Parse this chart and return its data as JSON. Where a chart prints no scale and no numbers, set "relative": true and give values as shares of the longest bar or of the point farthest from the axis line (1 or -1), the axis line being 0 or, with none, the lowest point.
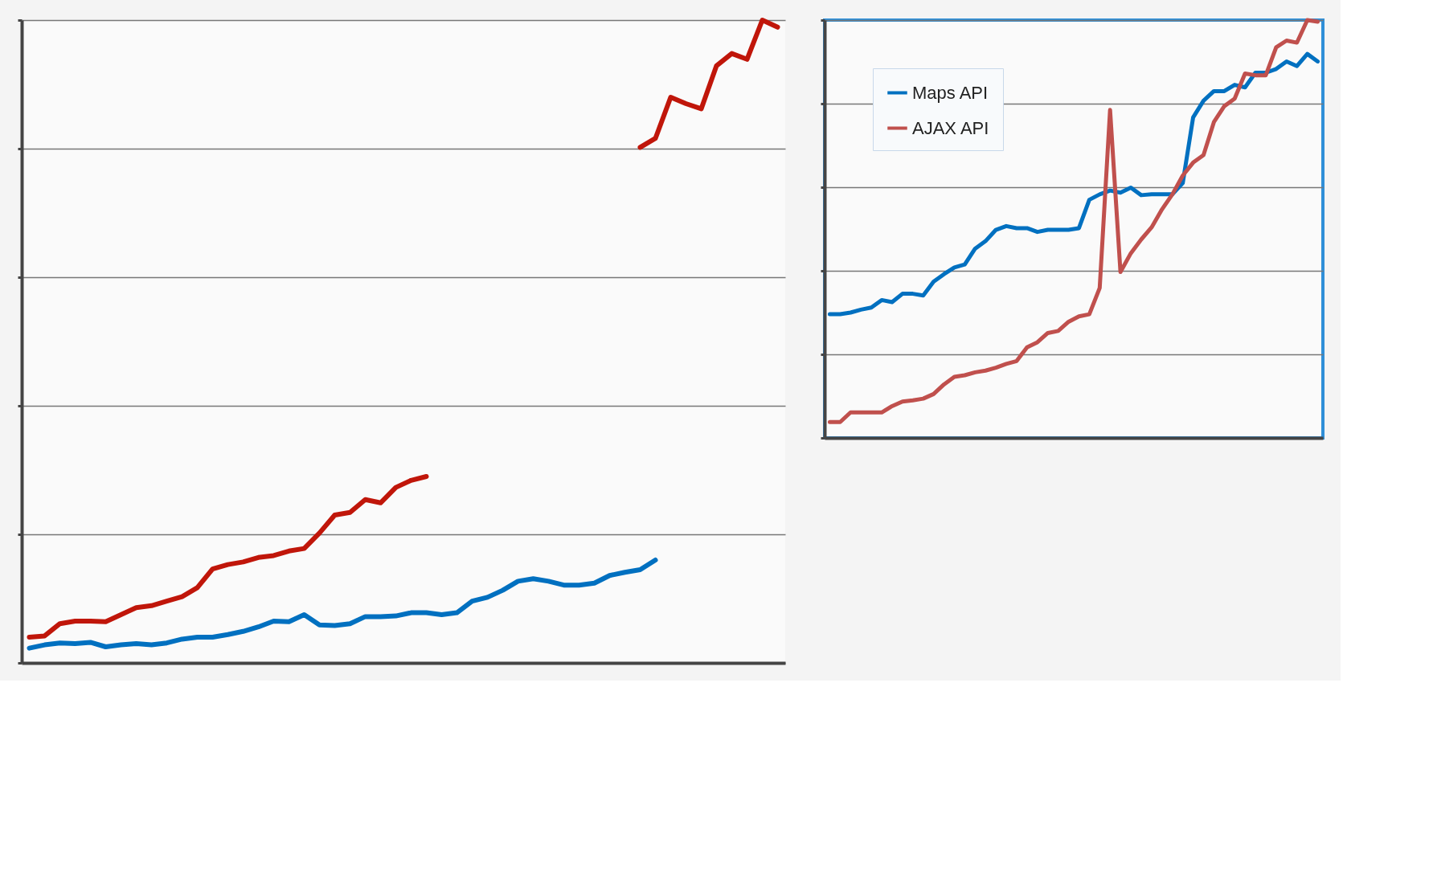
{
  "chart_data": [
    {
      "type": "line",
      "relative": true,
      "grid": "y",
      "legend": false,
      "categories": [
        null,
        null,
        null,
        null,
        null,
        null,
        null,
        null,
        null,
        null,
        null,
        null,
        null,
        null,
        null,
        null,
        null,
        null,
        null,
        null,
        null,
        null,
        null,
        null,
        null,
        null,
        null,
        null,
        null,
        null,
        null,
        null,
        null,
        null,
        null,
        null,
        null,
        null,
        null,
        null,
        null,
        null,
        null,
        null,
        null,
        null,
        null,
        null,
        null,
        null
      ],
      "series": [
        {
          "color": "#c0160a",
          "values": [
            0.04,
            0.042,
            0.061,
            0.065,
            0.065,
            0.064,
            0.075,
            0.086,
            0.089,
            0.096,
            0.103,
            0.117,
            0.146,
            0.153,
            0.157,
            0.164,
            0.167,
            0.174,
            0.178,
            0.202,
            0.23,
            0.234,
            0.254,
            0.249,
            0.273,
            0.284,
            0.29,
            null,
            null,
            null,
            null,
            null,
            null,
            null,
            null,
            null,
            null,
            null,
            null,
            null,
            0.802,
            0.816,
            0.88,
            0.87,
            0.862,
            0.929,
            0.948,
            0.939,
            1.0,
            0.989
          ]
        },
        {
          "color": "#0070c0",
          "values": [
            0.023,
            0.028,
            0.031,
            0.03,
            0.032,
            0.025,
            0.028,
            0.03,
            0.028,
            0.031,
            0.037,
            0.04,
            0.04,
            0.044,
            0.049,
            0.056,
            0.065,
            0.064,
            0.075,
            0.059,
            0.058,
            0.061,
            0.072,
            0.072,
            0.073,
            0.078,
            0.078,
            0.075,
            0.078,
            0.096,
            0.102,
            0.113,
            0.127,
            0.131,
            0.127,
            0.121,
            0.121,
            0.124,
            0.136,
            0.141,
            0.145,
            0.16,
            null,
            null,
            null,
            null,
            null,
            null,
            null,
            null
          ]
        }
      ]
    },
    {
      "type": "line",
      "relative": true,
      "grid": "y",
      "legend": "top left",
      "categories": [
        null,
        null,
        null,
        null,
        null,
        null,
        null,
        null,
        null,
        null,
        null,
        null,
        null,
        null,
        null,
        null,
        null,
        null,
        null,
        null,
        null,
        null,
        null,
        null,
        null,
        null,
        null,
        null,
        null,
        null,
        null,
        null,
        null,
        null,
        null,
        null,
        null,
        null,
        null,
        null,
        null,
        null,
        null,
        null,
        null,
        null,
        null,
        null
      ],
      "series": [
        {
          "name": "Maps API",
          "color": "#0070c0",
          "values": [
            0.296,
            0.296,
            0.3,
            0.307,
            0.312,
            0.33,
            0.325,
            0.345,
            0.345,
            0.341,
            0.374,
            0.392,
            0.408,
            0.415,
            0.453,
            0.471,
            0.498,
            0.507,
            0.502,
            0.502,
            0.493,
            0.498,
            0.498,
            0.498,
            0.502,
            0.57,
            0.583,
            0.592,
            0.587,
            0.599,
            0.581,
            0.583,
            0.583,
            0.583,
            0.61,
            0.767,
            0.807,
            0.83,
            0.83,
            0.845,
            0.839,
            0.874,
            0.874,
            0.883,
            0.901,
            0.89,
            0.919,
            0.901
          ]
        },
        {
          "name": "AJAX API",
          "color": "#c0504d",
          "values": [
            0.038,
            0.038,
            0.061,
            0.061,
            0.061,
            0.061,
            0.076,
            0.087,
            0.09,
            0.094,
            0.105,
            0.128,
            0.146,
            0.15,
            0.157,
            0.161,
            0.168,
            0.177,
            0.184,
            0.217,
            0.229,
            0.251,
            0.256,
            0.278,
            0.291,
            0.296,
            0.359,
            0.785,
            0.397,
            0.442,
            0.475,
            0.504,
            0.547,
            0.583,
            0.628,
            0.659,
            0.677,
            0.756,
            0.794,
            0.812,
            0.872,
            0.868,
            0.868,
            0.935,
            0.951,
            0.946,
            1.0,
            0.996
          ]
        }
      ]
    }
  ]
}
